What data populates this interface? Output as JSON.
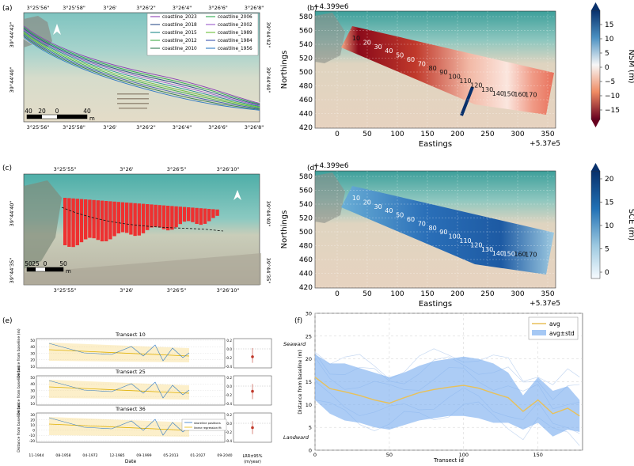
{
  "panel_labels": {
    "a": "(a)",
    "b": "(b)",
    "c": "(c)",
    "d": "(d)",
    "e": "(e)",
    "f": "(f)"
  },
  "panel_a": {
    "top_ticks": [
      "3°25'56\"",
      "3°25'58\"",
      "3°26'",
      "3°26'2\"",
      "3°26'4\"",
      "3°26'6\"",
      "3°26'8\""
    ],
    "bottom_ticks": [
      "3°25'56\"",
      "3°25'58\"",
      "3°26'",
      "3°26'2\"",
      "3°26'4\"",
      "3°26'6\"",
      "3°26'8\""
    ],
    "left_ticks": [
      "39°44'42\"",
      "39°44'40\""
    ],
    "right_ticks": [
      "39°44'42\"",
      "39°44'40\""
    ],
    "scale_labels": [
      "40",
      "20",
      "0",
      "40"
    ],
    "scale_unit": "m",
    "legend": [
      {
        "name": "coastline_2023",
        "color": "#8a3fb5"
      },
      {
        "name": "coastline_2006",
        "color": "#2aa84a"
      },
      {
        "name": "coastline_2018",
        "color": "#2c4f8a"
      },
      {
        "name": "coastline_2002",
        "color": "#9b59c9"
      },
      {
        "name": "coastline_2015",
        "color": "#1f8a8a"
      },
      {
        "name": "coastline_1989",
        "color": "#6bbf3a"
      },
      {
        "name": "coastline_2012",
        "color": "#3fae48"
      },
      {
        "name": "coastline_1984",
        "color": "#3d56b0"
      },
      {
        "name": "coastline_2010",
        "color": "#2e7a4e"
      },
      {
        "name": "coastline_1956",
        "color": "#2f79c4"
      }
    ]
  },
  "panel_c": {
    "top_ticks": [
      "3°25'55\"",
      "3°26'",
      "3°26'5\"",
      "3°26'10\""
    ],
    "bottom_ticks": [
      "3°25'55\"",
      "3°26'",
      "3°26'5\"",
      "3°26'10\""
    ],
    "left_ticks": [
      "39°44'40\"",
      "39°44'35\""
    ],
    "right_ticks": [
      "39°44'40\"",
      "39°44'35\""
    ],
    "scale_labels": [
      "50",
      "25",
      "0",
      "50"
    ],
    "scale_unit": "m"
  },
  "map_b": {
    "offset_top": "+4.399e6",
    "offset_right": "+5.37e5",
    "xlabel": "Eastings",
    "ylabel": "Northings",
    "xticks": [
      "0",
      "50",
      "100",
      "150",
      "200",
      "250",
      "300",
      "350"
    ],
    "yticks": [
      "580",
      "560",
      "540",
      "520",
      "500",
      "480",
      "460",
      "440",
      "420"
    ],
    "cbar_label": "NSM (m)",
    "cbar_ticks": [
      "15",
      "10",
      "5",
      "0",
      "−5",
      "−10",
      "−15"
    ],
    "transect_labels": [
      "10",
      "20",
      "30",
      "40",
      "50",
      "60",
      "70",
      "80",
      "90",
      "100",
      "110",
      "120",
      "130",
      "140",
      "150",
      "160",
      "170"
    ]
  },
  "map_d": {
    "offset_top": "+4.399e6",
    "offset_right": "+5.37e5",
    "xlabel": "Eastings",
    "ylabel": "Northings",
    "xticks": [
      "0",
      "50",
      "100",
      "150",
      "200",
      "250",
      "300",
      "350"
    ],
    "yticks": [
      "580",
      "560",
      "540",
      "520",
      "500",
      "480",
      "460",
      "440",
      "420"
    ],
    "cbar_label": "SCE (m)",
    "cbar_ticks": [
      "20",
      "15",
      "10",
      "5",
      "0"
    ],
    "transect_labels": [
      "10",
      "20",
      "30",
      "40",
      "50",
      "60",
      "70",
      "80",
      "90",
      "100",
      "110",
      "120",
      "130",
      "140",
      "150",
      "160",
      "170"
    ]
  },
  "panel_e": {
    "subplots": [
      {
        "title": "Transect 10",
        "ylabel": "Distance from baseline (m)",
        "yticks": [
          "50",
          "40",
          "30",
          "20",
          "10"
        ],
        "lrr": -0.18,
        "lrr_lo": -0.32,
        "lrr_hi": 0.02
      },
      {
        "title": "Transect 25",
        "ylabel": "Distance from baseline (m)",
        "yticks": [
          "50",
          "40",
          "30",
          "20",
          "10"
        ],
        "lrr": -0.12,
        "lrr_lo": -0.3,
        "lrr_hi": 0.05
      },
      {
        "title": "Transect 36",
        "ylabel": "Distance from baseline (m)",
        "yticks": [
          "30",
          "20",
          "10",
          "0",
          "-10",
          "-20"
        ],
        "lrr": -0.1,
        "lrr_lo": -0.25,
        "lrr_hi": 0.05
      }
    ],
    "lrr_ticks": [
      "0.2",
      "0.0",
      "-0.2",
      "-0.4"
    ],
    "xticks": [
      "11-1944",
      "08-1958",
      "04-1972",
      "12-1985",
      "09-1999",
      "05-2013",
      "01-2027",
      "09-2040"
    ],
    "xlabel": "Date",
    "legend": [
      "shoreline positions",
      "linear regression fit"
    ],
    "lrr_xlabel_1": "LRR±95%",
    "lrr_xlabel_2": "(m/year)"
  },
  "chart_data": {
    "type": "line",
    "xlabel": "Transect id",
    "ylabel": "Distance from baseline (m)",
    "xlim": [
      0,
      180
    ],
    "ylim": [
      0,
      30
    ],
    "xticks": [
      "0",
      "50",
      "100",
      "150"
    ],
    "yticks": [
      "30",
      "25",
      "20",
      "15",
      "10",
      "5",
      "0"
    ],
    "annotations": [
      "Seaward",
      "Landward"
    ],
    "legend": [
      "avg",
      "avg±std"
    ],
    "x": [
      0,
      10,
      20,
      30,
      40,
      50,
      60,
      70,
      80,
      90,
      100,
      110,
      120,
      130,
      140,
      150,
      160,
      170,
      178
    ],
    "series": [
      {
        "name": "avg",
        "values": [
          16,
          13.5,
          12.8,
          12,
          11,
          10.3,
          11.5,
          12.6,
          13.3,
          13.8,
          14.2,
          13.6,
          12.5,
          11.5,
          8.5,
          11,
          8,
          9.2,
          7.5
        ]
      },
      {
        "name": "avg±std",
        "lower": [
          11,
          8,
          6.5,
          6,
          5,
          4.5,
          5.5,
          6.5,
          7,
          7.5,
          7.5,
          7,
          6,
          6,
          4.5,
          6,
          3,
          4.5,
          4
        ],
        "upper": [
          21,
          19,
          19,
          18,
          17,
          16,
          17,
          18.5,
          19.5,
          20,
          20.5,
          20,
          19,
          17,
          12,
          16,
          13,
          14,
          11
        ]
      }
    ]
  }
}
